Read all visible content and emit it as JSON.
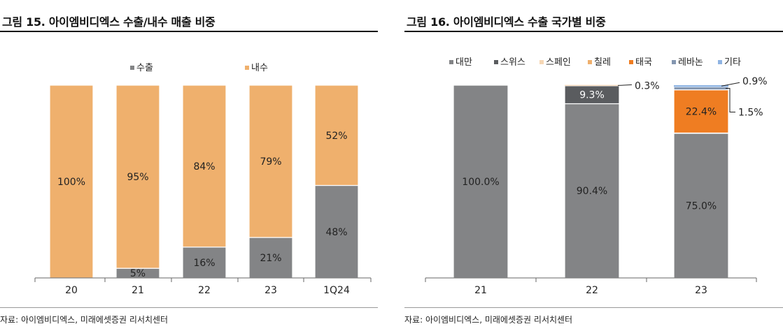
{
  "left_panel": {
    "title": "그림 15. 아이엠비디엑스 수출/내수 매출 비중",
    "source": "자료: 아이엠비디엑스, 미래에셋증권 리서치센터"
  },
  "right_panel": {
    "title": "그림 16. 아이엠비디엑스 수출 국가별 비중",
    "source": "자료: 아이엠비디엑스, 미래에셋증권 리서치센터"
  },
  "chart_data": [
    {
      "type": "bar",
      "stacked": true,
      "percent_stacked": true,
      "title": "그림 15. 아이엠비디엑스 수출/내수 매출 비중",
      "categories": [
        "20",
        "21",
        "22",
        "23",
        "1Q24"
      ],
      "series": [
        {
          "name": "수출",
          "color": "#838486",
          "values": [
            0,
            5,
            16,
            21,
            48
          ],
          "labels": [
            "",
            "5%",
            "16%",
            "21%",
            "48%"
          ]
        },
        {
          "name": "내수",
          "color": "#efb06d",
          "values": [
            100,
            95,
            84,
            79,
            52
          ],
          "labels": [
            "100%",
            "95%",
            "84%",
            "79%",
            "52%"
          ]
        }
      ],
      "ylim": [
        0,
        100
      ],
      "grid": false,
      "legend": "top"
    },
    {
      "type": "bar",
      "stacked": true,
      "percent_stacked": true,
      "title": "그림 16. 아이엠비디엑스 수출 국가별 비중",
      "categories": [
        "21",
        "22",
        "23"
      ],
      "series": [
        {
          "name": "대만",
          "color": "#838486",
          "values": [
            100.0,
            90.4,
            75.0
          ],
          "labels": [
            "100.0%",
            "90.4%",
            "75.0%"
          ]
        },
        {
          "name": "스위스",
          "color": "#5a5c5f",
          "values": [
            0,
            9.3,
            0
          ],
          "labels": [
            "",
            "9.3%",
            ""
          ]
        },
        {
          "name": "스페인",
          "color": "#f6d7b5",
          "values": [
            0,
            0.3,
            0
          ],
          "labels": [
            "",
            "0.3%",
            ""
          ]
        },
        {
          "name": "칠레",
          "color": "#efb06d",
          "values": [
            0,
            0,
            0.2
          ],
          "labels": [
            "",
            "",
            ""
          ]
        },
        {
          "name": "태국",
          "color": "#ef7d22",
          "values": [
            0,
            0,
            22.4
          ],
          "labels": [
            "",
            "",
            "22.4%"
          ]
        },
        {
          "name": "레바논",
          "color": "#8496b0",
          "values": [
            0,
            0,
            1.5
          ],
          "labels": [
            "",
            "",
            "1.5%"
          ]
        },
        {
          "name": "기타",
          "color": "#8fb4e3",
          "values": [
            0,
            0,
            0.9
          ],
          "labels": [
            "",
            "",
            "0.9%"
          ]
        }
      ],
      "ylim": [
        0,
        100
      ],
      "grid": false,
      "legend": "top"
    }
  ]
}
